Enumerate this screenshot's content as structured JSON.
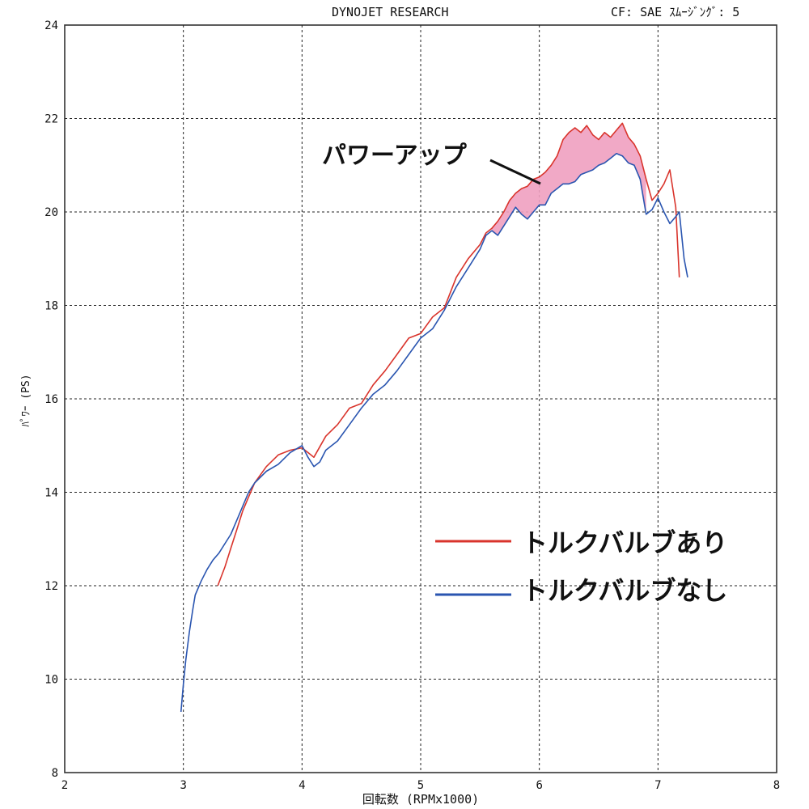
{
  "header": {
    "title": "DYNOJET RESEARCH",
    "cf_label": "CF: SAE  ｽﾑｰｼﾞﾝｸﾞ: 5"
  },
  "chart_data": {
    "type": "line",
    "title": "DYNOJET RESEARCH",
    "xlabel": "回転数 (RPMx1000)",
    "ylabel": "ﾊﾟﾜｰ (PS)",
    "xlim": [
      2,
      8
    ],
    "ylim": [
      8,
      24
    ],
    "xticks": [
      2,
      3,
      4,
      5,
      6,
      7,
      8
    ],
    "yticks": [
      8,
      10,
      12,
      14,
      16,
      18,
      20,
      22,
      24
    ],
    "grid": true,
    "legend_position": "right",
    "annotation": "パワーアップ",
    "colors": {
      "with_valve": "#d9342c",
      "without_valve": "#2a55b0",
      "fill": "#f0a0c0"
    },
    "series": [
      {
        "name": "トルクバルブあり",
        "color": "#d9342c",
        "x": [
          3.29,
          3.35,
          3.4,
          3.45,
          3.5,
          3.55,
          3.6,
          3.7,
          3.8,
          3.9,
          4.0,
          4.05,
          4.1,
          4.2,
          4.3,
          4.4,
          4.5,
          4.6,
          4.7,
          4.8,
          4.9,
          5.0,
          5.1,
          5.2,
          5.3,
          5.4,
          5.5,
          5.55,
          5.6,
          5.65,
          5.7,
          5.75,
          5.8,
          5.85,
          5.9,
          5.95,
          6.0,
          6.05,
          6.1,
          6.15,
          6.2,
          6.25,
          6.3,
          6.35,
          6.4,
          6.45,
          6.5,
          6.55,
          6.6,
          6.65,
          6.7,
          6.75,
          6.8,
          6.85,
          6.9,
          6.95,
          7.0,
          7.05,
          7.1,
          7.15,
          7.18
        ],
        "y": [
          12.0,
          12.4,
          12.8,
          13.2,
          13.6,
          13.9,
          14.2,
          14.55,
          14.8,
          14.9,
          14.95,
          14.85,
          14.75,
          15.2,
          15.45,
          15.8,
          15.9,
          16.3,
          16.6,
          16.95,
          17.3,
          17.4,
          17.75,
          17.95,
          18.6,
          19.0,
          19.3,
          19.55,
          19.65,
          19.8,
          20.0,
          20.25,
          20.4,
          20.5,
          20.55,
          20.7,
          20.75,
          20.85,
          21.0,
          21.2,
          21.55,
          21.7,
          21.8,
          21.7,
          21.85,
          21.65,
          21.55,
          21.7,
          21.6,
          21.75,
          21.9,
          21.6,
          21.45,
          21.2,
          20.7,
          20.25,
          20.4,
          20.6,
          20.9,
          20.1,
          18.6
        ]
      },
      {
        "name": "トルクバルブなし",
        "color": "#2a55b0",
        "x": [
          2.98,
          3.0,
          3.02,
          3.05,
          3.08,
          3.1,
          3.15,
          3.2,
          3.25,
          3.3,
          3.35,
          3.4,
          3.45,
          3.5,
          3.55,
          3.6,
          3.7,
          3.8,
          3.9,
          4.0,
          4.05,
          4.1,
          4.15,
          4.2,
          4.3,
          4.4,
          4.5,
          4.6,
          4.7,
          4.8,
          4.9,
          5.0,
          5.1,
          5.2,
          5.3,
          5.4,
          5.5,
          5.55,
          5.6,
          5.65,
          5.7,
          5.75,
          5.8,
          5.85,
          5.9,
          5.95,
          6.0,
          6.05,
          6.1,
          6.15,
          6.2,
          6.25,
          6.3,
          6.35,
          6.4,
          6.45,
          6.5,
          6.55,
          6.6,
          6.65,
          6.7,
          6.75,
          6.8,
          6.85,
          6.9,
          6.95,
          7.0,
          7.05,
          7.1,
          7.15,
          7.18,
          7.22,
          7.25
        ],
        "y": [
          9.3,
          9.9,
          10.4,
          11.0,
          11.5,
          11.8,
          12.1,
          12.35,
          12.55,
          12.7,
          12.9,
          13.1,
          13.4,
          13.7,
          14.0,
          14.2,
          14.45,
          14.6,
          14.85,
          15.0,
          14.75,
          14.55,
          14.65,
          14.9,
          15.1,
          15.45,
          15.8,
          16.1,
          16.3,
          16.6,
          16.95,
          17.3,
          17.5,
          17.9,
          18.4,
          18.8,
          19.2,
          19.5,
          19.6,
          19.5,
          19.7,
          19.9,
          20.1,
          19.95,
          19.85,
          20.0,
          20.15,
          20.15,
          20.4,
          20.5,
          20.6,
          20.6,
          20.65,
          20.8,
          20.85,
          20.9,
          21.0,
          21.05,
          21.15,
          21.25,
          21.2,
          21.05,
          21.0,
          20.7,
          19.95,
          20.05,
          20.3,
          20.0,
          19.75,
          19.9,
          20.0,
          19.0,
          18.6
        ]
      }
    ]
  }
}
